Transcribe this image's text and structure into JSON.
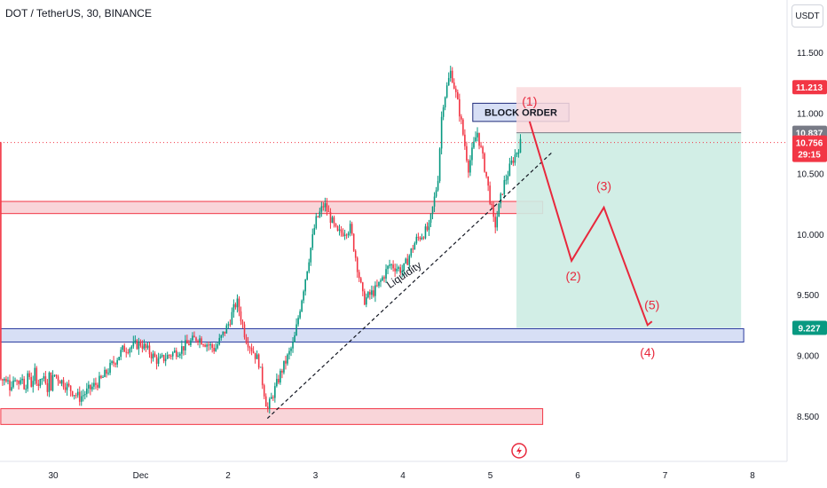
{
  "header": {
    "title": "DOT / TetherUS, 30, BINANCE",
    "currency": "USDT"
  },
  "colors": {
    "up": "#089981",
    "down": "#f23645",
    "wave": "#e8283c",
    "resistance_fill": "#f9d5d9",
    "support_fill": "#d7dff5",
    "target_fill": "#cdece3",
    "stop_fill": "#fad9dc"
  },
  "badges": {
    "stop": "11.213",
    "entry": "10.837",
    "last_price": "10.756",
    "countdown": "29:15",
    "target": "9.227"
  },
  "annotations": {
    "block_order": "BLOCK ORDER",
    "liquidity": "Liquidity",
    "waves": [
      "(1)",
      "(2)",
      "(3)",
      "(4)",
      "(5)"
    ]
  },
  "chart_data": {
    "type": "candlestick",
    "x_ticks": [
      "30",
      "Dec",
      "2",
      "3",
      "4",
      "5",
      "6",
      "7",
      "8"
    ],
    "y_ticks": [
      "11.500",
      "11.000",
      "10.500",
      "10.000",
      "9.500",
      "9.000",
      "8.500"
    ],
    "ylim": [
      8.2,
      11.8
    ],
    "close_path": [
      [
        0.0,
        8.85
      ],
      [
        0.3,
        8.65
      ],
      [
        0.55,
        8.8
      ],
      [
        0.8,
        9.05
      ],
      [
        1.0,
        9.1
      ],
      [
        1.2,
        8.95
      ],
      [
        1.45,
        9.05
      ],
      [
        1.65,
        9.15
      ],
      [
        1.85,
        9.05
      ],
      [
        2.0,
        9.25
      ],
      [
        2.1,
        9.45
      ],
      [
        2.2,
        9.15
      ],
      [
        2.35,
        8.95
      ],
      [
        2.45,
        8.55
      ],
      [
        2.6,
        8.85
      ],
      [
        2.75,
        9.1
      ],
      [
        2.9,
        9.7
      ],
      [
        3.0,
        10.1
      ],
      [
        3.1,
        10.25
      ],
      [
        3.25,
        10.0
      ],
      [
        3.4,
        10.05
      ],
      [
        3.55,
        9.45
      ],
      [
        3.7,
        9.55
      ],
      [
        3.85,
        9.75
      ],
      [
        4.0,
        9.7
      ],
      [
        4.15,
        9.95
      ],
      [
        4.3,
        10.05
      ],
      [
        4.4,
        10.45
      ],
      [
        4.45,
        11.05
      ],
      [
        4.55,
        11.35
      ],
      [
        4.65,
        11.0
      ],
      [
        4.75,
        10.55
      ],
      [
        4.85,
        10.85
      ],
      [
        4.95,
        10.5
      ],
      [
        5.05,
        10.05
      ],
      [
        5.15,
        10.4
      ],
      [
        5.25,
        10.6
      ],
      [
        5.35,
        10.756
      ]
    ],
    "zones": [
      {
        "kind": "resistance",
        "x0": -0.6,
        "x1": 5.6,
        "y0": 10.17,
        "y1": 10.27
      },
      {
        "kind": "support",
        "x0": -0.6,
        "x1": 7.9,
        "y0": 9.11,
        "y1": 9.22
      },
      {
        "kind": "resistance",
        "x0": -0.6,
        "x1": 5.6,
        "y0": 8.43,
        "y1": 8.56
      },
      {
        "kind": "block_order",
        "x0": 4.8,
        "x1": 5.9,
        "y0": 10.93,
        "y1": 11.08
      }
    ],
    "position": {
      "x0": 5.3,
      "x1": 7.87,
      "entry": 10.837,
      "stop": 11.213,
      "target": 9.227
    },
    "liquidity_line": [
      [
        2.45,
        8.48
      ],
      [
        5.7,
        10.67
      ]
    ],
    "wave_path": [
      [
        5.45,
        10.93
      ],
      [
        5.93,
        9.78
      ],
      [
        6.3,
        10.22
      ],
      [
        6.8,
        9.25
      ],
      [
        6.85,
        9.28
      ]
    ],
    "wave_label_positions": [
      [
        5.45,
        11.06
      ],
      [
        5.95,
        9.62
      ],
      [
        6.3,
        10.36
      ],
      [
        6.8,
        8.99
      ],
      [
        6.85,
        9.38
      ]
    ]
  }
}
